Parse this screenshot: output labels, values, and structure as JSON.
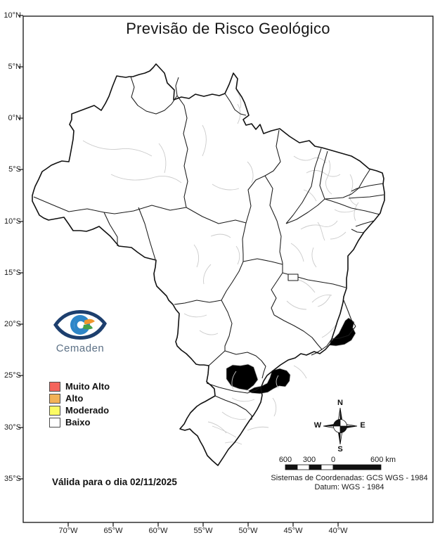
{
  "title": "Previsão de Risco Geológico",
  "legend": {
    "items": [
      {
        "label": "Muito Alto",
        "color": "#f4645c"
      },
      {
        "label": "Alto",
        "color": "#f3b257"
      },
      {
        "label": "Moderado",
        "color": "#fbfb64"
      },
      {
        "label": "Baixo",
        "color": "#ffffff"
      }
    ]
  },
  "logo": {
    "text": "Cemaden"
  },
  "validity": "Válida para o dia 02/11/2025",
  "compass": {
    "n": "N",
    "s": "S",
    "e": "E",
    "w": "W"
  },
  "scale_bar": {
    "labels": [
      "600",
      "300",
      "0",
      "600 km"
    ]
  },
  "projection": {
    "line1": "Sistemas de Coordenadas: GCS WGS - 1984",
    "line2": "Datum: WGS - 1984"
  },
  "axes": {
    "lat": [
      "10°N",
      "5°N",
      "0°N",
      "5°S",
      "10°S",
      "15°S",
      "20°S",
      "25°S",
      "30°S",
      "35°S"
    ],
    "lon": [
      "70°W",
      "65°W",
      "60°W",
      "55°W",
      "50°W",
      "45°W",
      "40°W"
    ]
  },
  "map": {
    "moderate_color": "#fbfb64",
    "outline_color": "#1a1a1a",
    "municipality_color": "#cbcbcb"
  }
}
